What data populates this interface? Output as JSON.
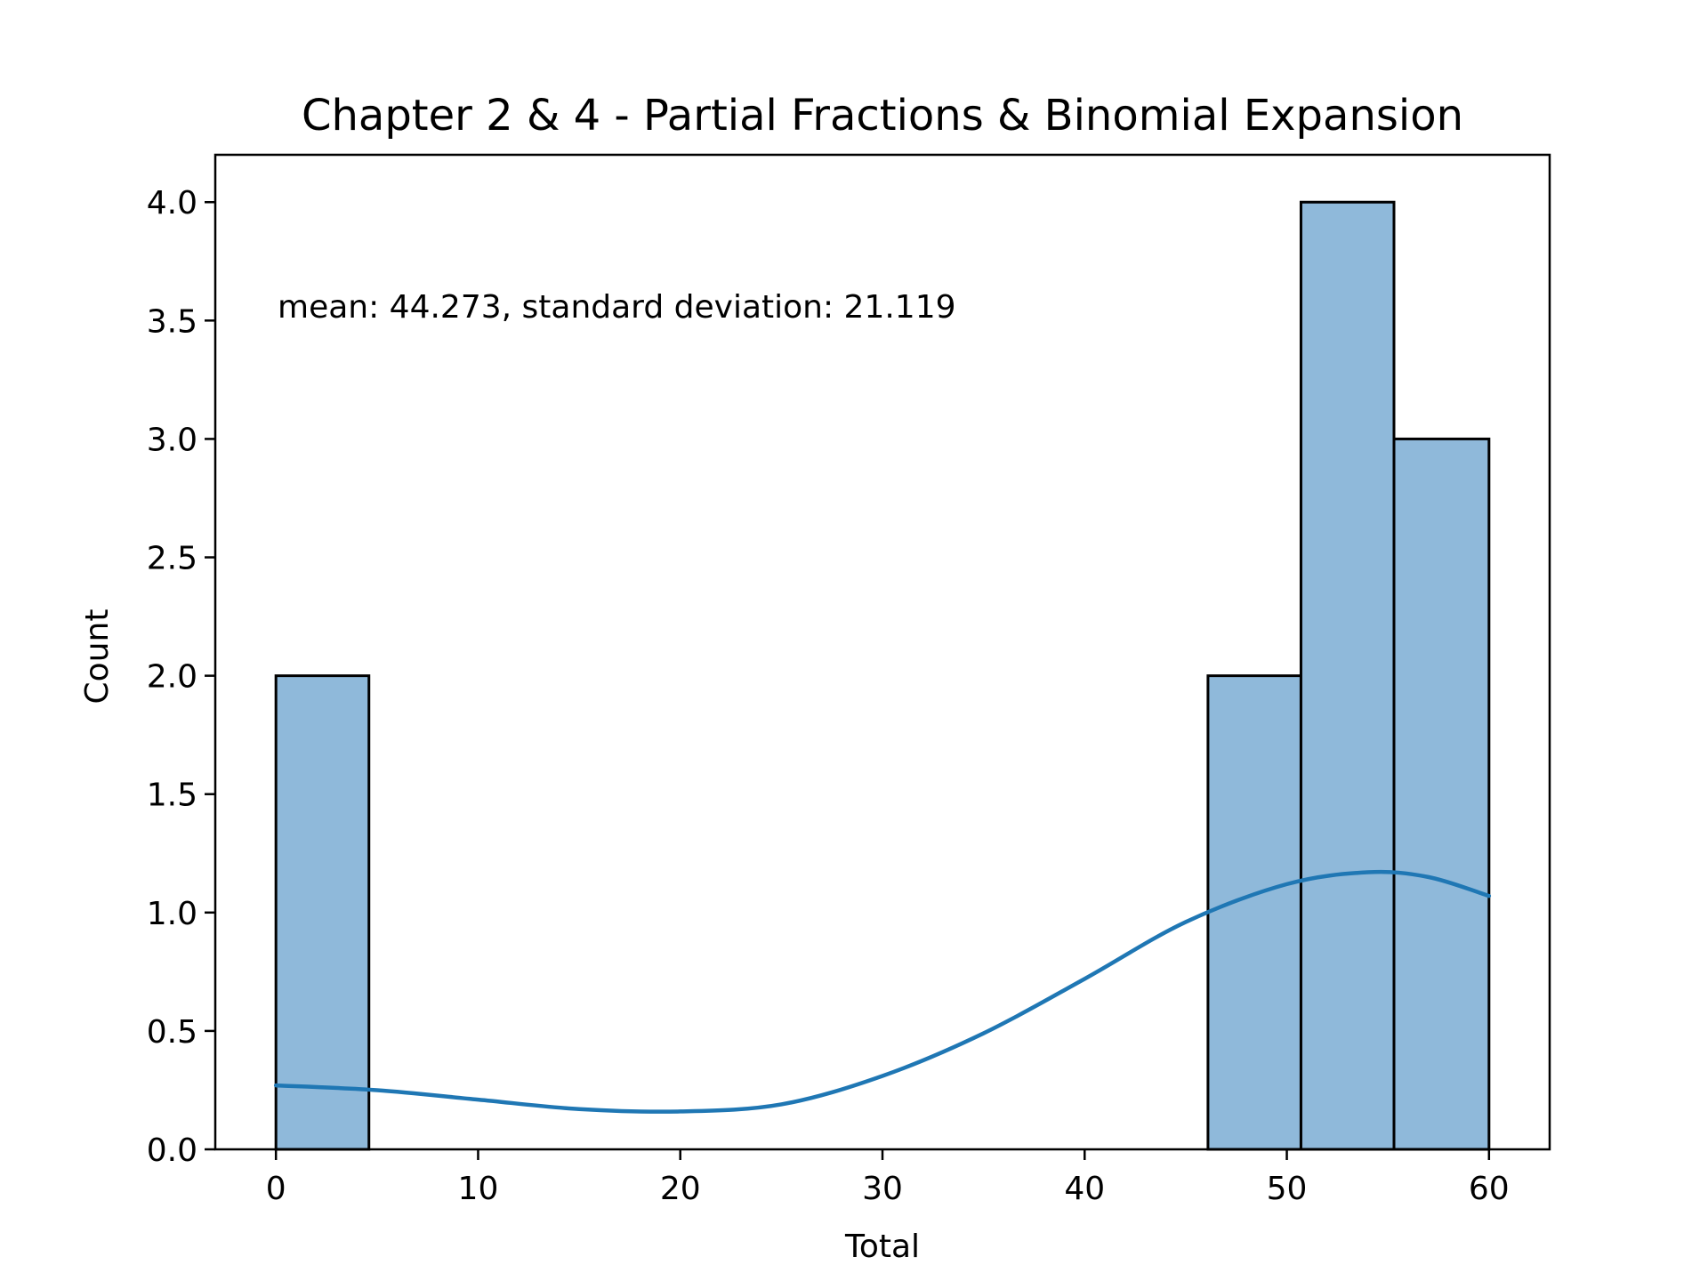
{
  "chart_data": {
    "type": "histogram",
    "title": "Chapter 2 & 4 - Partial Fractions & Binomial Expansion",
    "xlabel": "Total",
    "ylabel": "Count",
    "annotation": "mean: 44.273, standard deviation: 21.119",
    "xlim": [
      -3,
      63
    ],
    "ylim": [
      0,
      4.2
    ],
    "xticks": [
      0,
      10,
      20,
      30,
      40,
      50,
      60
    ],
    "xtick_labels": [
      "0",
      "10",
      "20",
      "30",
      "40",
      "50",
      "60"
    ],
    "yticks": [
      0,
      0.5,
      1,
      1.5,
      2,
      2.5,
      3,
      3.5,
      4
    ],
    "ytick_labels": [
      "0.0",
      "0.5",
      "1.0",
      "1.5",
      "2.0",
      "2.5",
      "3.0",
      "3.5",
      "4.0"
    ],
    "bins": [
      {
        "start": 0,
        "end": 4.6,
        "count": 2
      },
      {
        "start": 46.1,
        "end": 50.7,
        "count": 2
      },
      {
        "start": 50.7,
        "end": 55.3,
        "count": 4
      },
      {
        "start": 55.3,
        "end": 60,
        "count": 3
      }
    ],
    "kde": {
      "x": [
        0,
        5,
        10,
        15,
        20,
        25,
        30,
        35,
        40,
        45,
        50,
        54,
        57,
        60
      ],
      "y": [
        0.27,
        0.25,
        0.21,
        0.17,
        0.16,
        0.19,
        0.31,
        0.49,
        0.72,
        0.96,
        1.12,
        1.17,
        1.15,
        1.07
      ]
    },
    "grid": false,
    "colors": {
      "bar_fill": "#8fb9da",
      "bar_edge": "#000000",
      "kde_line": "#1f77b4"
    }
  }
}
